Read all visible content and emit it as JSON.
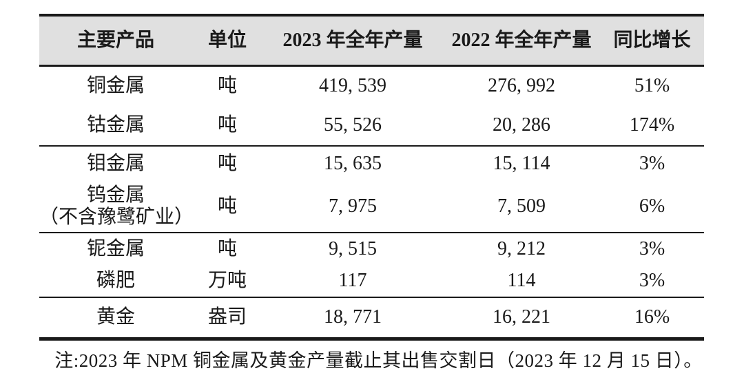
{
  "colors": {
    "page_bg": "#ffffff",
    "header_bg": "#e0e0e0",
    "border": "#1a1a1a",
    "text": "#1a1a1a"
  },
  "table": {
    "columns": [
      "主要产品",
      "单位",
      "2023 年全年产量",
      "2022 年全年产量",
      "同比增长"
    ],
    "groups": [
      {
        "rows": [
          {
            "product": "铜金属",
            "unit": "吨",
            "y2023": "419, 539",
            "y2022": "276, 992",
            "yoy": "51%"
          },
          {
            "product": "钴金属",
            "unit": "吨",
            "y2023": "55, 526",
            "y2022": "20, 286",
            "yoy": "174%"
          }
        ]
      },
      {
        "rows": [
          {
            "product": "钼金属",
            "unit": "吨",
            "y2023": "15, 635",
            "y2022": "15, 114",
            "yoy": "3%"
          },
          {
            "product": "钨金属",
            "product_note": "（不含豫鹭矿业）",
            "unit": "吨",
            "y2023": "7, 975",
            "y2022": "7, 509",
            "yoy": "6%"
          }
        ]
      },
      {
        "rows": [
          {
            "product": "铌金属",
            "unit": "吨",
            "y2023": "9, 515",
            "y2022": "9, 212",
            "yoy": "3%"
          },
          {
            "product": "磷肥",
            "unit": "万吨",
            "y2023": "117",
            "y2022": "114",
            "yoy": "3%"
          }
        ]
      },
      {
        "rows": [
          {
            "product": "黄金",
            "unit": "盎司",
            "y2023": "18, 771",
            "y2022": "16, 221",
            "yoy": "16%"
          }
        ]
      }
    ],
    "footnote": "注:2023 年 NPM 铜金属及黄金产量截止其出售交割日（2023 年 12 月 15 日）。"
  }
}
